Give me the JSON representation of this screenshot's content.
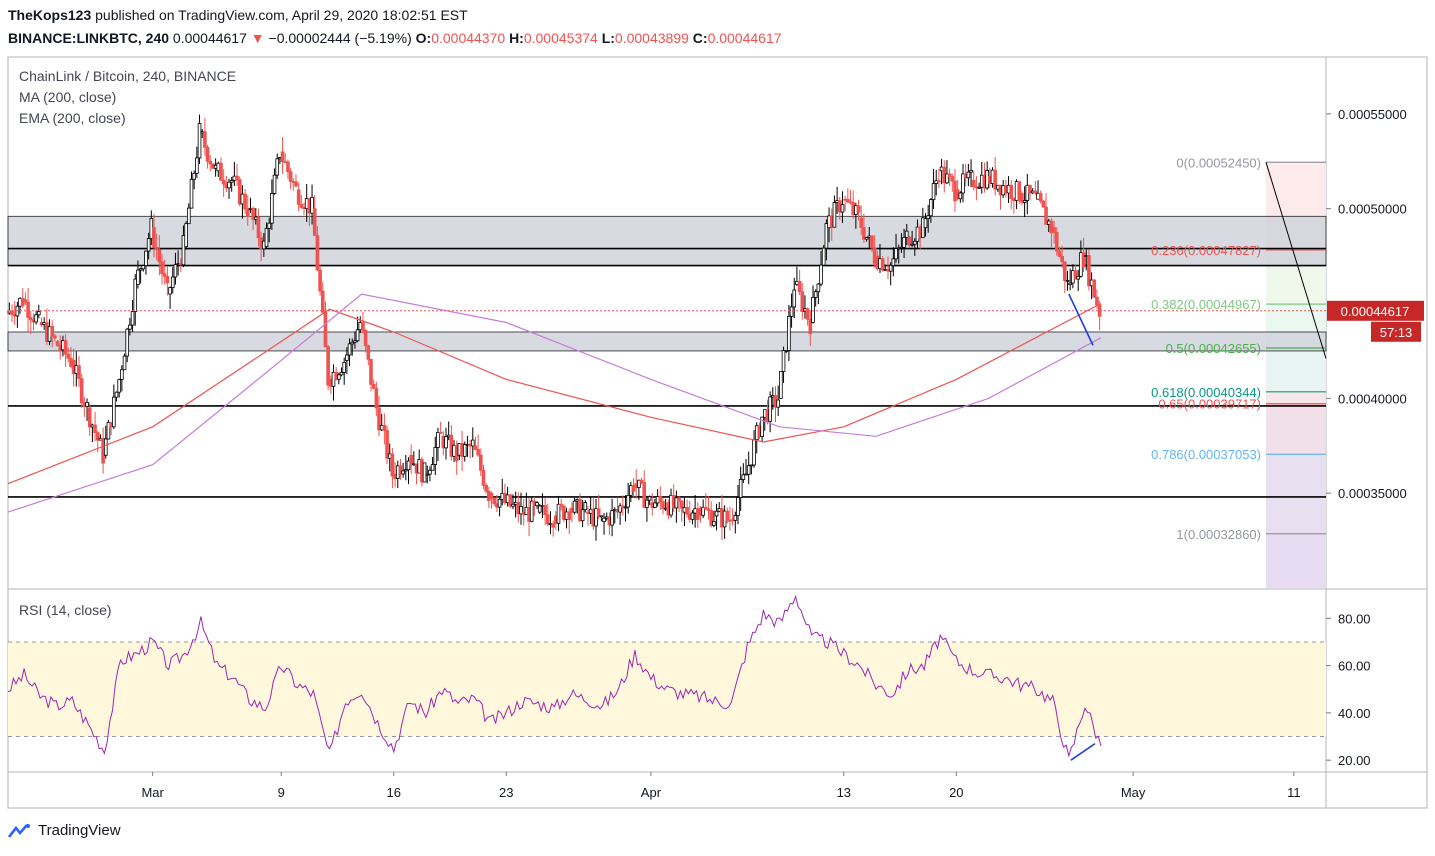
{
  "header": {
    "author": "TheKops123",
    "published_text": "published on TradingView.com, April 29, 2020 18:02:51 EST",
    "symbol": "BINANCE:LINKBTC, 240",
    "last": "0.00044617",
    "arrow": "▼",
    "change": "−0.00002444 (−5.19%)",
    "o_label": "O:",
    "o_value": "0.00044370",
    "h_label": "H:",
    "h_value": "0.00045374",
    "l_label": "L:",
    "l_value": "0.00043899",
    "c_label": "C:",
    "c_value": "0.00044617"
  },
  "legend": {
    "title": "ChainLink / Bitcoin, 240, BINANCE",
    "ma": "MA (200, close)",
    "ema": "EMA (200, close)",
    "rsi": "RSI (14, close)"
  },
  "price_badge": {
    "value": "0.00044617",
    "countdown": "57:13"
  },
  "footer": {
    "brand": "TradingView"
  },
  "colors": {
    "up": "#26a69a",
    "down": "#ef5350",
    "ema": "#ef5350",
    "ma": "#c77ddb",
    "rsi": "#9c27b0",
    "zone": "#d1d4dc",
    "badge": "#c62828"
  },
  "chart_data": {
    "type": "candlestick",
    "time_range": [
      "2020-02-21",
      "2020-05-13"
    ],
    "ylim": [
      0.0003,
      0.00058
    ],
    "y_ticks": [
      {
        "value": 0.00055,
        "label": "0.00055000"
      },
      {
        "value": 0.0005,
        "label": "0.00050000"
      },
      {
        "value": 0.0004,
        "label": "0.00040000"
      },
      {
        "value": 0.00035,
        "label": "0.00035000"
      }
    ],
    "x_ticks": [
      {
        "date": "2020-03-01",
        "label": "Mar"
      },
      {
        "date": "2020-03-09",
        "label": "9"
      },
      {
        "date": "2020-03-16",
        "label": "16"
      },
      {
        "date": "2020-03-23",
        "label": "23"
      },
      {
        "date": "2020-04-01",
        "label": "Apr"
      },
      {
        "date": "2020-04-13",
        "label": "13"
      },
      {
        "date": "2020-04-20",
        "label": "20"
      },
      {
        "date": "2020-05-01",
        "label": "May"
      },
      {
        "date": "2020-05-11",
        "label": "11"
      }
    ],
    "close_path": [
      [
        "2020-02-21",
        0.000445
      ],
      [
        "2020-02-22",
        0.000452
      ],
      [
        "2020-02-23",
        0.00044
      ],
      [
        "2020-02-24",
        0.00043
      ],
      [
        "2020-02-25",
        0.00042
      ],
      [
        "2020-02-26",
        0.000395
      ],
      [
        "2020-02-27",
        0.00037
      ],
      [
        "2020-02-28",
        0.00041
      ],
      [
        "2020-02-29",
        0.00046
      ],
      [
        "2020-03-01",
        0.00049
      ],
      [
        "2020-03-02",
        0.000455
      ],
      [
        "2020-03-03",
        0.00048
      ],
      [
        "2020-03-04",
        0.00054
      ],
      [
        "2020-03-05",
        0.00052
      ],
      [
        "2020-03-06",
        0.000515
      ],
      [
        "2020-03-07",
        0.0005
      ],
      [
        "2020-03-08",
        0.00048
      ],
      [
        "2020-03-09",
        0.00053
      ],
      [
        "2020-03-10",
        0.00051
      ],
      [
        "2020-03-11",
        0.0005
      ],
      [
        "2020-03-12",
        0.00041
      ],
      [
        "2020-03-13",
        0.00042
      ],
      [
        "2020-03-14",
        0.00044
      ],
      [
        "2020-03-15",
        0.000395
      ],
      [
        "2020-03-16",
        0.00036
      ],
      [
        "2020-03-17",
        0.00037
      ],
      [
        "2020-03-18",
        0.00036
      ],
      [
        "2020-03-19",
        0.00038
      ],
      [
        "2020-03-20",
        0.00037
      ],
      [
        "2020-03-21",
        0.000375
      ],
      [
        "2020-03-22",
        0.00035
      ],
      [
        "2020-03-23",
        0.000345
      ],
      [
        "2020-03-24",
        0.00034
      ],
      [
        "2020-03-25",
        0.00034
      ],
      [
        "2020-03-26",
        0.000338
      ],
      [
        "2020-03-27",
        0.000342
      ],
      [
        "2020-03-28",
        0.00034
      ],
      [
        "2020-03-29",
        0.000335
      ],
      [
        "2020-03-30",
        0.00034
      ],
      [
        "2020-03-31",
        0.000355
      ],
      [
        "2020-04-01",
        0.000345
      ],
      [
        "2020-04-02",
        0.000345
      ],
      [
        "2020-04-03",
        0.00034
      ],
      [
        "2020-04-04",
        0.000342
      ],
      [
        "2020-04-05",
        0.000338
      ],
      [
        "2020-04-06",
        0.000336
      ],
      [
        "2020-04-07",
        0.00036
      ],
      [
        "2020-04-08",
        0.00039
      ],
      [
        "2020-04-09",
        0.0004
      ],
      [
        "2020-04-10",
        0.00046
      ],
      [
        "2020-04-11",
        0.00044
      ],
      [
        "2020-04-12",
        0.00049
      ],
      [
        "2020-04-13",
        0.000505
      ],
      [
        "2020-04-14",
        0.000495
      ],
      [
        "2020-04-15",
        0.000475
      ],
      [
        "2020-04-16",
        0.00047
      ],
      [
        "2020-04-17",
        0.000485
      ],
      [
        "2020-04-18",
        0.00049
      ],
      [
        "2020-04-19",
        0.00052
      ],
      [
        "2020-04-20",
        0.00051
      ],
      [
        "2020-04-21",
        0.000515
      ],
      [
        "2020-04-22",
        0.000517
      ],
      [
        "2020-04-23",
        0.000512
      ],
      [
        "2020-04-24",
        0.000508
      ],
      [
        "2020-04-25",
        0.000505
      ],
      [
        "2020-04-26",
        0.00049
      ],
      [
        "2020-04-27",
        0.00046
      ],
      [
        "2020-04-28",
        0.000475
      ],
      [
        "2020-04-29",
        0.000446
      ]
    ],
    "ema_200": [
      [
        "2020-02-21",
        0.000355
      ],
      [
        "2020-03-01",
        0.000385
      ],
      [
        "2020-03-09",
        0.00043
      ],
      [
        "2020-03-12",
        0.000447
      ],
      [
        "2020-03-16",
        0.000435
      ],
      [
        "2020-03-23",
        0.00041
      ],
      [
        "2020-04-01",
        0.00039
      ],
      [
        "2020-04-08",
        0.000377
      ],
      [
        "2020-04-13",
        0.000385
      ],
      [
        "2020-04-20",
        0.00041
      ],
      [
        "2020-04-29",
        0.00045
      ]
    ],
    "ma_200": [
      [
        "2020-02-21",
        0.00034
      ],
      [
        "2020-03-01",
        0.000365
      ],
      [
        "2020-03-09",
        0.00042
      ],
      [
        "2020-03-14",
        0.000455
      ],
      [
        "2020-03-23",
        0.00044
      ],
      [
        "2020-04-01",
        0.00041
      ],
      [
        "2020-04-09",
        0.000385
      ],
      [
        "2020-04-15",
        0.00038
      ],
      [
        "2020-04-22",
        0.0004
      ],
      [
        "2020-04-29",
        0.000432
      ]
    ],
    "horizontal_levels": [
      0.000479,
      0.00047,
      0.000396,
      0.000348
    ],
    "zones": [
      [
        0.00047,
        0.000496
      ],
      [
        0.000425,
        0.000435
      ]
    ],
    "fib_retracement": [
      {
        "label": "0(0.00052450)",
        "value": 0.0005245,
        "color": "#9598a1"
      },
      {
        "label": "0.236(0.00047827)",
        "value": 0.00047827,
        "color": "#ef5350"
      },
      {
        "label": "0.382(0.00044967)",
        "value": 0.00044967,
        "color": "#81c784"
      },
      {
        "label": "0.5(0.00042655)",
        "value": 0.00042655,
        "color": "#4caf50"
      },
      {
        "label": "0.618(0.00040344)",
        "value": 0.00040344,
        "color": "#089981"
      },
      {
        "label": "0.65(0.00039717)",
        "value": 0.00039717,
        "color": "#ef5350"
      },
      {
        "label": "0.786(0.00037053)",
        "value": 0.00037053,
        "color": "#64b5f6"
      },
      {
        "label": "1(0.00032860)",
        "value": 0.0003286,
        "color": "#9598a1"
      }
    ],
    "rsi": {
      "ylim": [
        15,
        92
      ],
      "upper_band": 70,
      "lower_band": 30,
      "ticks": [
        {
          "value": 80,
          "label": "80.00"
        },
        {
          "value": 60,
          "label": "60.00"
        },
        {
          "value": 40,
          "label": "40.00"
        },
        {
          "value": 20,
          "label": "20.00"
        }
      ],
      "values": [
        [
          "2020-02-21",
          50
        ],
        [
          "2020-02-22",
          56
        ],
        [
          "2020-02-23",
          47
        ],
        [
          "2020-02-24",
          43
        ],
        [
          "2020-02-25",
          45
        ],
        [
          "2020-02-26",
          35
        ],
        [
          "2020-02-27",
          24
        ],
        [
          "2020-02-28",
          62
        ],
        [
          "2020-02-29",
          65
        ],
        [
          "2020-03-01",
          70
        ],
        [
          "2020-03-02",
          60
        ],
        [
          "2020-03-03",
          65
        ],
        [
          "2020-03-04",
          78
        ],
        [
          "2020-03-05",
          60
        ],
        [
          "2020-03-06",
          55
        ],
        [
          "2020-03-07",
          46
        ],
        [
          "2020-03-08",
          42
        ],
        [
          "2020-03-09",
          60
        ],
        [
          "2020-03-10",
          52
        ],
        [
          "2020-03-11",
          48
        ],
        [
          "2020-03-12",
          22
        ],
        [
          "2020-03-13",
          45
        ],
        [
          "2020-03-14",
          50
        ],
        [
          "2020-03-15",
          36
        ],
        [
          "2020-03-16",
          25
        ],
        [
          "2020-03-17",
          45
        ],
        [
          "2020-03-18",
          40
        ],
        [
          "2020-03-19",
          50
        ],
        [
          "2020-03-20",
          44
        ],
        [
          "2020-03-21",
          46
        ],
        [
          "2020-03-22",
          36
        ],
        [
          "2020-03-23",
          40
        ],
        [
          "2020-03-24",
          45
        ],
        [
          "2020-03-25",
          44
        ],
        [
          "2020-03-26",
          42
        ],
        [
          "2020-03-27",
          48
        ],
        [
          "2020-03-28",
          46
        ],
        [
          "2020-03-29",
          43
        ],
        [
          "2020-03-30",
          50
        ],
        [
          "2020-03-31",
          65
        ],
        [
          "2020-04-01",
          55
        ],
        [
          "2020-04-02",
          50
        ],
        [
          "2020-04-03",
          48
        ],
        [
          "2020-04-04",
          47
        ],
        [
          "2020-04-05",
          45
        ],
        [
          "2020-04-06",
          44
        ],
        [
          "2020-04-07",
          68
        ],
        [
          "2020-04-08",
          82
        ],
        [
          "2020-04-09",
          78
        ],
        [
          "2020-04-10",
          90
        ],
        [
          "2020-04-11",
          72
        ],
        [
          "2020-04-12",
          70
        ],
        [
          "2020-04-13",
          65
        ],
        [
          "2020-04-14",
          60
        ],
        [
          "2020-04-15",
          52
        ],
        [
          "2020-04-16",
          48
        ],
        [
          "2020-04-17",
          58
        ],
        [
          "2020-04-18",
          60
        ],
        [
          "2020-04-19",
          72
        ],
        [
          "2020-04-20",
          62
        ],
        [
          "2020-04-21",
          58
        ],
        [
          "2020-04-22",
          56
        ],
        [
          "2020-04-23",
          55
        ],
        [
          "2020-04-24",
          52
        ],
        [
          "2020-04-25",
          50
        ],
        [
          "2020-04-26",
          45
        ],
        [
          "2020-04-27",
          20
        ],
        [
          "2020-04-28",
          44
        ],
        [
          "2020-04-29",
          26
        ]
      ]
    }
  }
}
